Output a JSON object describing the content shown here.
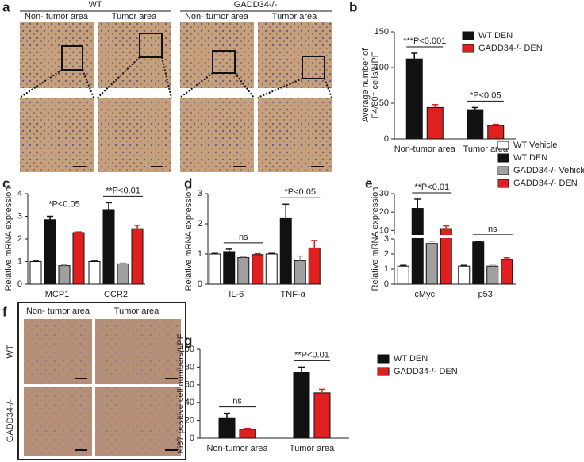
{
  "figure_a": {
    "panel": "a",
    "groups": [
      "WT",
      "GADD34-/-"
    ],
    "columns": [
      "Non- tumor area",
      "Tumor area",
      "Non- tumor area",
      "Tumor area"
    ]
  },
  "figure_f": {
    "panel": "f",
    "columns": [
      "Non- tumor area",
      "Tumor area"
    ],
    "rows": [
      "WT",
      "GADD34-/-"
    ]
  },
  "chart_data": [
    {
      "type": "bar",
      "panel": "b",
      "ylabel": [
        "Average number of",
        "F4/80⁺ cells/HPF"
      ],
      "categories": [
        "Non-tumor area",
        "Tumor area"
      ],
      "series": [
        {
          "name": "WT DEN",
          "color": "#111111",
          "values": [
            112,
            41
          ],
          "errors": [
            8,
            3
          ]
        },
        {
          "name": "GADD34-/- DEN",
          "color": "#e0201e",
          "values": [
            44,
            19
          ],
          "errors": [
            4,
            1.5
          ]
        }
      ],
      "annotations": [
        "***P<0.001",
        "*P<0.05"
      ],
      "ylim": [
        0,
        150
      ],
      "yticks": [
        0,
        50,
        100,
        150
      ]
    },
    {
      "type": "bar",
      "panel": "c",
      "ylabel": [
        "Relative mRNA expression"
      ],
      "categories": [
        "MCP1",
        "CCR2"
      ],
      "series": [
        {
          "color": "#ffffff",
          "values": [
            1,
            1
          ],
          "errors": [
            0.02,
            0.05
          ]
        },
        {
          "color": "#111111",
          "values": [
            2.85,
            3.3
          ],
          "errors": [
            0.15,
            0.3
          ]
        },
        {
          "color": "#a0a0a0",
          "values": [
            0.82,
            0.9
          ],
          "errors": [
            0.04,
            0.03
          ]
        },
        {
          "color": "#e0201e",
          "values": [
            2.28,
            2.45
          ],
          "errors": [
            0.03,
            0.15
          ]
        }
      ],
      "annotations": [
        "*P<0.05",
        "**P<0.01"
      ],
      "ylim": [
        0,
        4
      ],
      "yticks": [
        0,
        1,
        2,
        3,
        4
      ]
    },
    {
      "type": "bar",
      "panel": "d",
      "ylabel": [
        "Relative mRNA expression"
      ],
      "categories": [
        "IL-6",
        "TNF-α"
      ],
      "series": [
        {
          "color": "#ffffff",
          "values": [
            1,
            1
          ],
          "errors": [
            0.02,
            0.02
          ]
        },
        {
          "color": "#111111",
          "values": [
            1.08,
            2.2
          ],
          "errors": [
            0.08,
            0.45
          ]
        },
        {
          "color": "#a0a0a0",
          "values": [
            0.88,
            0.78
          ],
          "errors": [
            0.03,
            0.15
          ]
        },
        {
          "color": "#e0201e",
          "values": [
            0.98,
            1.2
          ],
          "errors": [
            0.03,
            0.25
          ]
        }
      ],
      "annotations": [
        "ns",
        "*P<0.05"
      ],
      "ylim": [
        0,
        3
      ],
      "yticks": [
        0,
        1,
        2,
        3
      ]
    },
    {
      "type": "bar",
      "panel": "e",
      "ylabel": [
        "Relative mRNA expression"
      ],
      "categories": [
        "cMyc",
        "p53"
      ],
      "series": [
        {
          "name": "WT Vehicle",
          "color": "#ffffff",
          "values": [
            1.2,
            1.2
          ],
          "errors": [
            0.05,
            0.05
          ]
        },
        {
          "name": "WT DEN",
          "color": "#111111",
          "values": [
            22,
            2.8
          ],
          "errors": [
            5,
            0.05
          ]
        },
        {
          "name": "GADD34-/- Vehicle",
          "color": "#a0a0a0",
          "values": [
            2.7,
            1.2
          ],
          "errors": [
            0.15,
            0.05
          ]
        },
        {
          "name": "GADD34-/- DEN",
          "color": "#e0201e",
          "values": [
            11,
            1.65
          ],
          "errors": [
            1.5,
            0.1
          ]
        }
      ],
      "annotations": [
        "**P<0.01",
        "ns"
      ],
      "ylim": [
        0,
        30
      ],
      "ybreak": [
        3,
        8
      ],
      "yticks": [
        0,
        1,
        2,
        3,
        10,
        20,
        30
      ]
    },
    {
      "type": "bar",
      "panel": "g",
      "ylabel": [
        "Ki67 positive cell numbers/LPF"
      ],
      "categories": [
        "Non-tumor area",
        "Tumor area"
      ],
      "series": [
        {
          "name": "WT DEN",
          "color": "#111111",
          "values": [
            23,
            74
          ],
          "errors": [
            5,
            6
          ]
        },
        {
          "name": "GADD34-/- DEN",
          "color": "#e0201e",
          "values": [
            10,
            51
          ],
          "errors": [
            1,
            4
          ]
        }
      ],
      "annotations": [
        "ns",
        "**P<0.01"
      ],
      "ylim": [
        0,
        100
      ],
      "yticks": [
        0,
        20,
        40,
        60,
        80,
        100
      ]
    }
  ]
}
